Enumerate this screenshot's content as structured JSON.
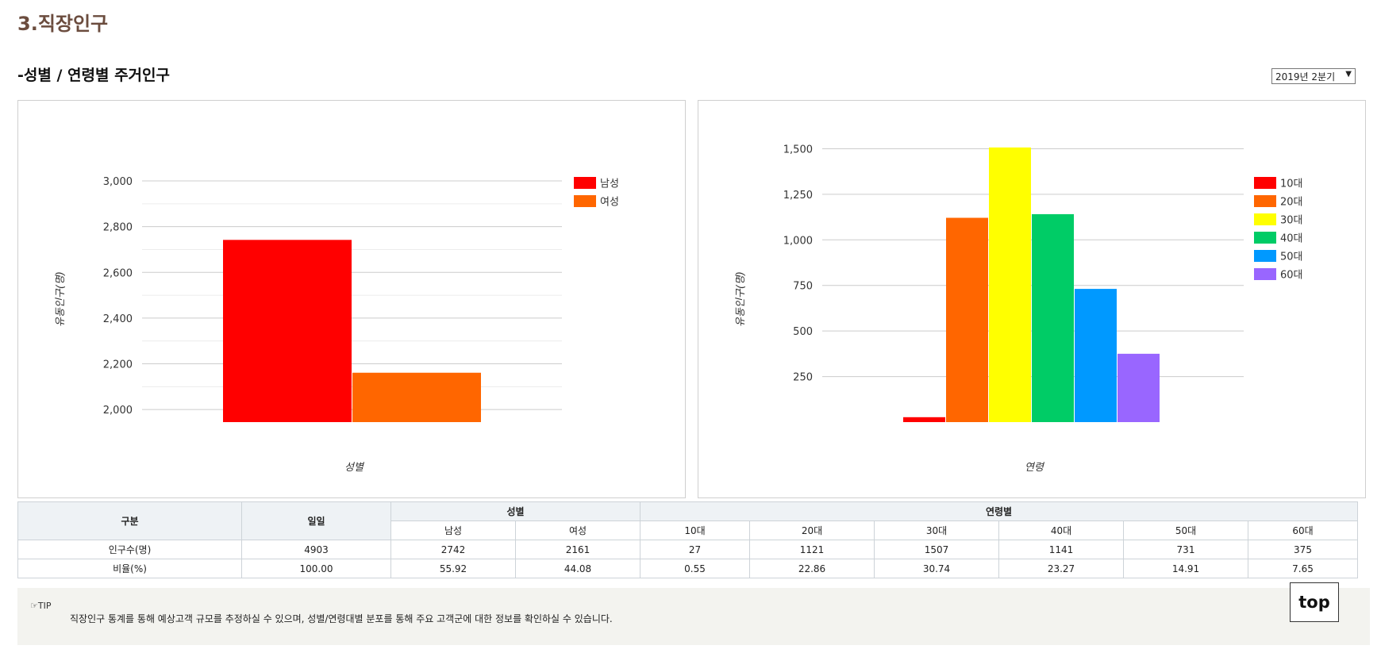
{
  "section_title": "3.직장인구",
  "sub_title": "-성별 / 연령별 주거인구",
  "period_select": {
    "value": "2019년 2분기"
  },
  "chart_data": [
    {
      "type": "bar",
      "categories": [
        "남성",
        "여성"
      ],
      "values": [
        2742,
        2161
      ],
      "colors": [
        "#ff0000",
        "#ff6600"
      ],
      "xlabel": "성별",
      "ylabel": "유동인구(명)",
      "ylim": [
        1945,
        3000
      ],
      "yticks": [
        2000,
        2200,
        2400,
        2600,
        2800,
        3000
      ],
      "ytick_labels": [
        "2,000",
        "2,200",
        "2,400",
        "2,600",
        "2,800",
        "3,000"
      ],
      "minor_gridlines": true,
      "legend": [
        "남성",
        "여성"
      ],
      "legend_position": "top-right"
    },
    {
      "type": "bar",
      "categories": [
        "10대",
        "20대",
        "30대",
        "40대",
        "50대",
        "60대"
      ],
      "values": [
        27,
        1121,
        1507,
        1141,
        731,
        375
      ],
      "colors": [
        "#ff0000",
        "#ff6600",
        "#ffff00",
        "#00cc66",
        "#0099ff",
        "#9966ff"
      ],
      "xlabel": "연령",
      "ylabel": "유동인구(명)",
      "ylim": [
        0,
        1650
      ],
      "yticks": [
        250,
        500,
        750,
        1000,
        1250,
        1500
      ],
      "ytick_labels": [
        "250",
        "500",
        "750",
        "1,000",
        "1,250",
        "1,500"
      ],
      "minor_gridlines": false,
      "legend": [
        "10대",
        "20대",
        "30대",
        "40대",
        "50대",
        "60대"
      ],
      "legend_position": "top-right"
    }
  ],
  "table": {
    "header": {
      "category": "구분",
      "daily": "일일",
      "gender_group": "성별",
      "age_group": "연령별",
      "male": "남성",
      "female": "여성",
      "ages": [
        "10대",
        "20대",
        "30대",
        "40대",
        "50대",
        "60대"
      ]
    },
    "rows": [
      {
        "label": "인구수(명)",
        "daily": "4903",
        "male": "2742",
        "female": "2161",
        "ages": [
          "27",
          "1121",
          "1507",
          "1141",
          "731",
          "375"
        ]
      },
      {
        "label": "비율(%)",
        "daily": "100.00",
        "male": "55.92",
        "female": "44.08",
        "ages": [
          "0.55",
          "22.86",
          "30.74",
          "23.27",
          "14.91",
          "7.65"
        ]
      }
    ]
  },
  "tip": {
    "label": "TIP",
    "text": "직장인구 통계를 통해 예상고객 규모를 추정하실 수 있으며, 성별/연령대별 분포를 통해 주요 고객군에 대한 정보를 확인하실 수 있습니다."
  },
  "top_button": "top"
}
